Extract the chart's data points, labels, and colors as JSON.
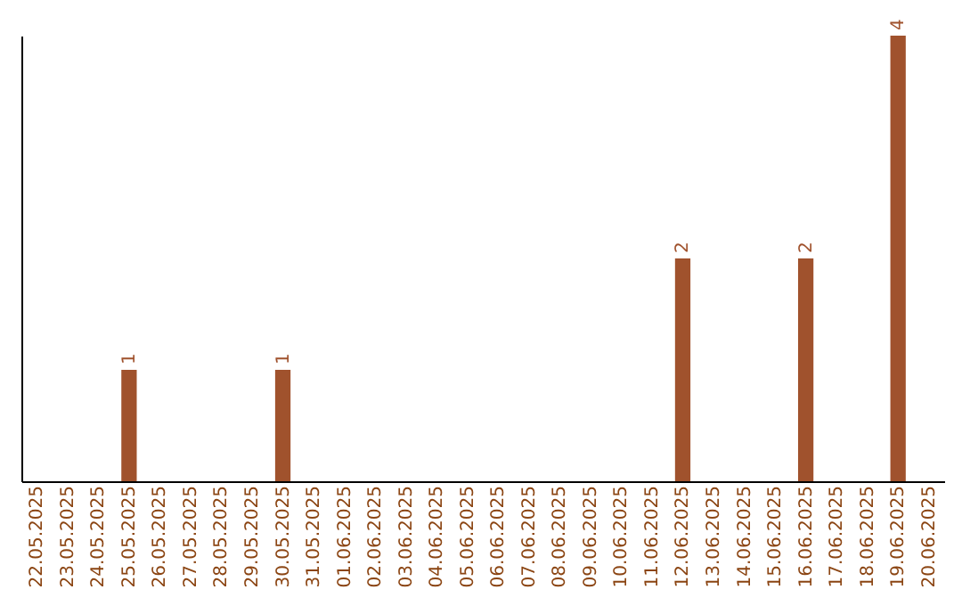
{
  "chart_data": {
    "type": "bar",
    "categories": [
      "22.05.2025",
      "23.05.2025",
      "24.05.2025",
      "25.05.2025",
      "26.05.2025",
      "27.05.2025",
      "28.05.2025",
      "29.05.2025",
      "30.05.2025",
      "31.05.2025",
      "01.06.2025",
      "02.06.2025",
      "03.06.2025",
      "04.06.2025",
      "05.06.2025",
      "06.06.2025",
      "07.06.2025",
      "08.06.2025",
      "09.06.2025",
      "10.06.2025",
      "11.06.2025",
      "12.06.2025",
      "13.06.2025",
      "14.06.2025",
      "15.06.2025",
      "16.06.2025",
      "17.06.2025",
      "18.06.2025",
      "19.06.2025",
      "20.06.2025"
    ],
    "values": [
      0,
      0,
      0,
      1,
      0,
      0,
      0,
      0,
      1,
      0,
      0,
      0,
      0,
      0,
      0,
      0,
      0,
      0,
      0,
      0,
      0,
      2,
      0,
      0,
      0,
      2,
      0,
      0,
      4,
      0
    ],
    "value_labels": [
      null,
      null,
      null,
      "1",
      null,
      null,
      null,
      null,
      "1",
      null,
      null,
      null,
      null,
      null,
      null,
      null,
      null,
      null,
      null,
      null,
      null,
      "2",
      null,
      null,
      null,
      "2",
      null,
      null,
      "4",
      null
    ],
    "color": "#a0522d",
    "grid": false
  }
}
